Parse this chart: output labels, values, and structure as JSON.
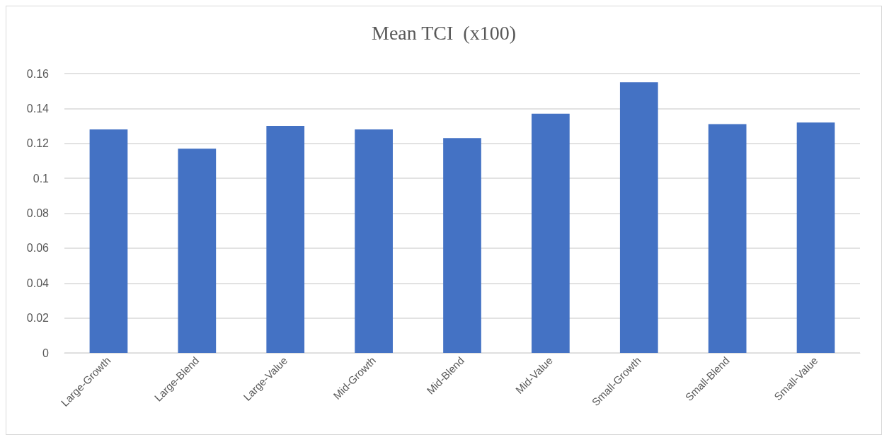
{
  "chart_data": {
    "type": "bar",
    "title": "Mean TCI  (x100)",
    "categories": [
      "Large-Growth",
      "Large-Blend",
      "Large-Value",
      "Mid-Growth",
      "Mid-Blend",
      "Mid-Value",
      "Small-Growth",
      "Small-Blend",
      "Small-Value"
    ],
    "values": [
      0.128,
      0.117,
      0.13,
      0.128,
      0.123,
      0.137,
      0.155,
      0.131,
      0.132
    ],
    "color": "#4472c4",
    "ylim": [
      0,
      0.16
    ],
    "yticks": [
      0,
      0.02,
      0.04,
      0.06,
      0.08,
      0.1,
      0.12,
      0.14,
      0.16
    ],
    "grid": "y"
  }
}
